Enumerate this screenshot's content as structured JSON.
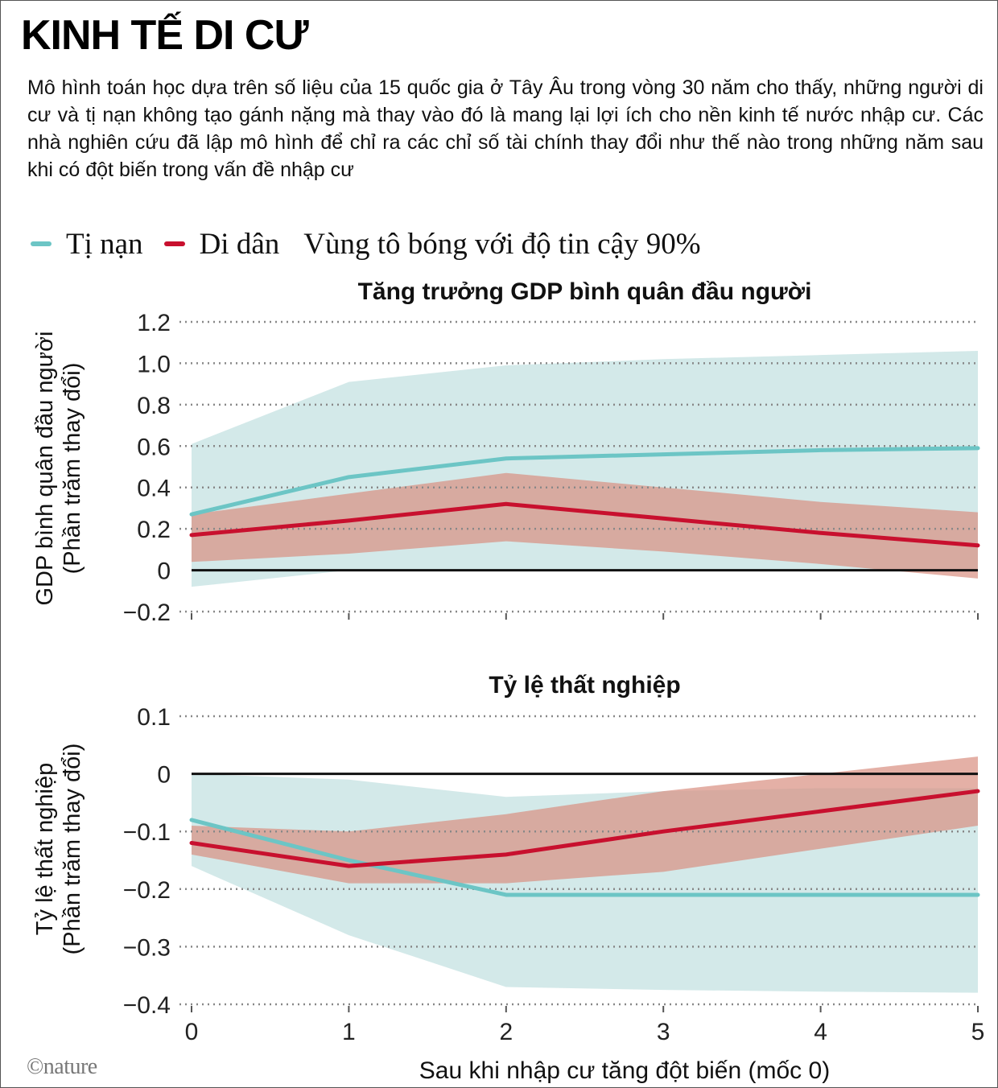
{
  "title": "KINH TẾ DI CƯ",
  "description": "Mô hình toán học dựa trên số liệu của 15 quốc gia ở Tây Âu trong vòng 30 năm cho thấy, những người di cư và tị nạn không tạo gánh nặng mà thay vào đó là mang lại lợi ích cho nền kinh tế nước nhập cư. Các nhà nghiên cứu đã lập mô hình để chỉ ra các chỉ số tài chính thay đổi như thế nào trong những năm sau khi có đột biến trong vấn đề nhập cư",
  "legend": {
    "refugee": "Tị nạn",
    "migrant": "Di dân",
    "shaded": "Vùng tô bóng với độ tin cậy 90%"
  },
  "credit": "©nature",
  "colors": {
    "refugee_line": "#6cc5c5",
    "refugee_band": "#d3e9e9",
    "migrant_line": "#c8102e",
    "migrant_band": "#d98f80",
    "zero_line": "#111111",
    "grid": "#888888"
  },
  "chart_data": [
    {
      "type": "line",
      "title": "Tăng trưởng GDP bình quân đầu người",
      "ylabel_line1": "GDP bình quân đầu người",
      "ylabel_line2": "(Phần trăm thay đổi)",
      "xlabel": "",
      "x": [
        0,
        1,
        2,
        3,
        4,
        5
      ],
      "xlim": [
        0,
        5
      ],
      "ylim": [
        -0.2,
        1.2
      ],
      "yticks": [
        1.2,
        1.0,
        0.8,
        0.6,
        0.4,
        0.2,
        0,
        -0.2
      ],
      "ytick_labels": [
        "1.2",
        "1.0",
        "0.8",
        "0.6",
        "0.4",
        "0.2",
        "0",
        "−0.2"
      ],
      "series": [
        {
          "name": "Tị nạn",
          "values": [
            0.27,
            0.45,
            0.54,
            0.56,
            0.58,
            0.59
          ],
          "band_upper": [
            0.61,
            0.91,
            0.99,
            1.02,
            1.04,
            1.06
          ],
          "band_lower": [
            -0.08,
            0.0,
            0.0,
            0.0,
            0.0,
            0.0
          ]
        },
        {
          "name": "Di dân",
          "values": [
            0.17,
            0.24,
            0.32,
            0.25,
            0.18,
            0.12
          ],
          "band_upper": [
            0.27,
            0.37,
            0.47,
            0.4,
            0.33,
            0.28
          ],
          "band_lower": [
            0.04,
            0.08,
            0.14,
            0.09,
            0.03,
            -0.04
          ]
        }
      ]
    },
    {
      "type": "line",
      "title": "Tỷ lệ thất nghiệp",
      "ylabel_line1": "Tỷ lệ thất nghiệp",
      "ylabel_line2": "(Phần trăm thay đổi)",
      "xlabel": "Sau khi nhập cư tăng đột biến (mốc 0)",
      "x": [
        0,
        1,
        2,
        3,
        4,
        5
      ],
      "xlim": [
        0,
        5
      ],
      "ylim": [
        -0.4,
        0.1
      ],
      "yticks": [
        0.1,
        0,
        -0.1,
        -0.2,
        -0.3,
        -0.4
      ],
      "ytick_labels": [
        "0.1",
        "0",
        "−0.1",
        "−0.2",
        "−0.3",
        "−0.4"
      ],
      "xtick_labels": [
        "0",
        "1",
        "2",
        "3",
        "4",
        "5"
      ],
      "series": [
        {
          "name": "Tị nạn",
          "values": [
            -0.08,
            -0.15,
            -0.21,
            -0.21,
            -0.21,
            -0.21
          ],
          "band_upper": [
            0.0,
            -0.01,
            -0.04,
            -0.03,
            -0.025,
            -0.025
          ],
          "band_lower": [
            -0.16,
            -0.28,
            -0.37,
            -0.375,
            -0.378,
            -0.38
          ]
        },
        {
          "name": "Di dân",
          "values": [
            -0.12,
            -0.16,
            -0.14,
            -0.1,
            -0.065,
            -0.03
          ],
          "band_upper": [
            -0.09,
            -0.1,
            -0.07,
            -0.03,
            0.0,
            0.03
          ],
          "band_lower": [
            -0.14,
            -0.19,
            -0.19,
            -0.17,
            -0.13,
            -0.09
          ]
        }
      ]
    }
  ]
}
